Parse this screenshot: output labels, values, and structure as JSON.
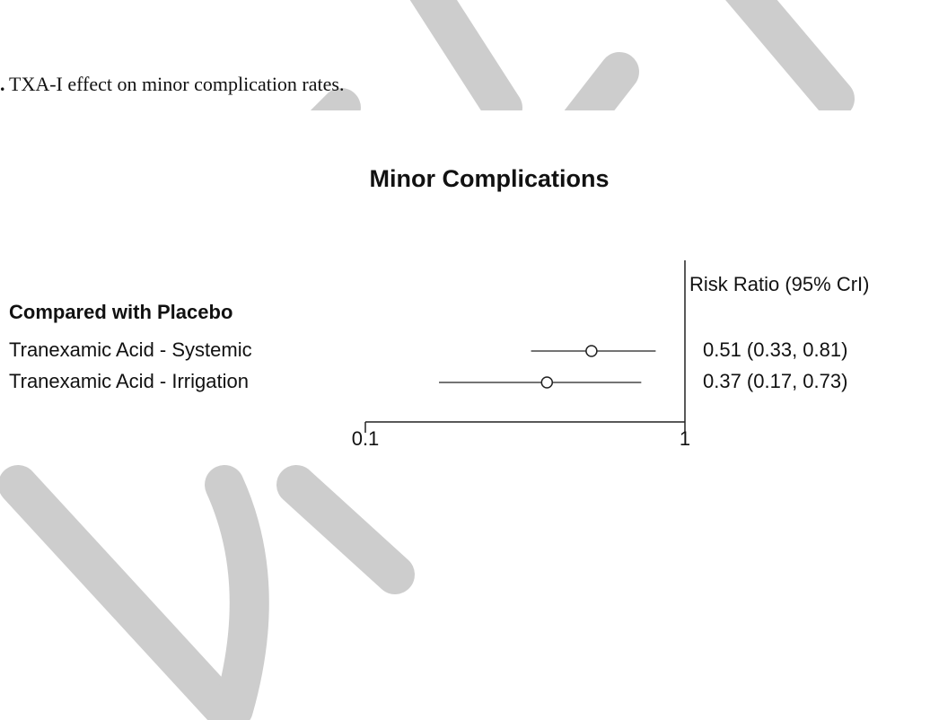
{
  "caption_mark": ".",
  "caption": "TXA-I effect on minor complication rates.",
  "chart_data": {
    "type": "forest",
    "title": "Minor Complications",
    "column_header": "Risk Ratio (95% CrI)",
    "group": "Compared with Placebo",
    "categories": [
      "Tranexamic Acid - Systemic",
      "Tranexamic Acid - Irrigation"
    ],
    "values": [
      0.51,
      0.37
    ],
    "lower": [
      0.33,
      0.17
    ],
    "upper": [
      0.81,
      0.73
    ],
    "value_labels": [
      "0.51 (0.33, 0.81)",
      "0.37 (0.17, 0.73)"
    ],
    "xlim": [
      0.1,
      1
    ],
    "xticks": [
      0.1,
      1
    ],
    "log_scale": true,
    "reference": 1,
    "color": "#222"
  }
}
